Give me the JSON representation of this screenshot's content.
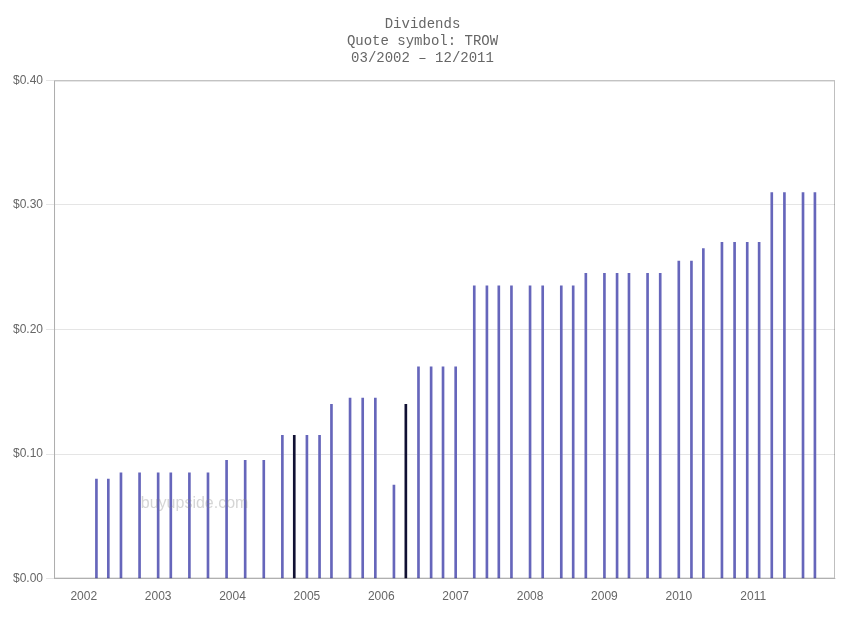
{
  "chart_data": {
    "type": "bar",
    "title": [
      "Dividends",
      "Quote symbol: TROW",
      "03/2002 – 12/2011"
    ],
    "annotation": "buyupside.com",
    "x": [
      2002.17,
      2002.33,
      2002.5,
      2002.75,
      2003.0,
      2003.17,
      2003.42,
      2003.67,
      2003.92,
      2004.17,
      2004.42,
      2004.67,
      2004.83,
      2005.0,
      2005.17,
      2005.33,
      2005.58,
      2005.75,
      2005.92,
      2006.17,
      2006.33,
      2006.5,
      2006.67,
      2006.83,
      2007.0,
      2007.25,
      2007.42,
      2007.58,
      2007.75,
      2008.0,
      2008.17,
      2008.42,
      2008.58,
      2008.75,
      2009.0,
      2009.17,
      2009.33,
      2009.58,
      2009.75,
      2010.0,
      2010.17,
      2010.33,
      2010.58,
      2010.75,
      2010.92,
      2011.08,
      2011.25,
      2011.42,
      2011.67,
      2011.83
    ],
    "values": [
      0.08,
      0.08,
      0.085,
      0.085,
      0.085,
      0.085,
      0.085,
      0.085,
      0.095,
      0.095,
      0.095,
      0.115,
      0.115,
      0.115,
      0.115,
      0.14,
      0.145,
      0.145,
      0.145,
      0.075,
      0.14,
      0.17,
      0.17,
      0.17,
      0.17,
      0.235,
      0.235,
      0.235,
      0.235,
      0.235,
      0.235,
      0.235,
      0.235,
      0.245,
      0.245,
      0.245,
      0.245,
      0.245,
      0.245,
      0.255,
      0.255,
      0.265,
      0.27,
      0.27,
      0.27,
      0.27,
      0.31,
      0.31,
      0.31,
      0.31
    ],
    "colors": [
      "#6666bb",
      "#6666bb",
      "#6666bb",
      "#6666bb",
      "#6666bb",
      "#6666bb",
      "#6666bb",
      "#6666bb",
      "#6666bb",
      "#6666bb",
      "#6666bb",
      "#6666bb",
      "#111133",
      "#6666bb",
      "#6666bb",
      "#6666bb",
      "#6666bb",
      "#6666bb",
      "#6666bb",
      "#6666bb",
      "#111133",
      "#6666bb",
      "#6666bb",
      "#6666bb",
      "#6666bb",
      "#6666bb",
      "#6666bb",
      "#6666bb",
      "#6666bb",
      "#6666bb",
      "#6666bb",
      "#6666bb",
      "#6666bb",
      "#6666bb",
      "#6666bb",
      "#6666bb",
      "#6666bb",
      "#6666bb",
      "#6666bb",
      "#6666bb",
      "#6666bb",
      "#6666bb",
      "#6666bb",
      "#6666bb",
      "#6666bb",
      "#6666bb",
      "#6666bb",
      "#6666bb",
      "#6666bb",
      "#6666bb"
    ],
    "xlim": [
      2001.6,
      2012.1
    ],
    "xticks": [
      2002,
      2003,
      2004,
      2005,
      2006,
      2007,
      2008,
      2009,
      2010,
      2011
    ],
    "ylim": [
      0.0,
      0.4
    ],
    "yticks": [
      {
        "value": 0.0,
        "label": "$0.00"
      },
      {
        "value": 0.1,
        "label": "$0.10"
      },
      {
        "value": 0.2,
        "label": "$0.20"
      },
      {
        "value": 0.3,
        "label": "$0.30"
      },
      {
        "value": 0.4,
        "label": "$0.40"
      }
    ],
    "grid": "y"
  }
}
